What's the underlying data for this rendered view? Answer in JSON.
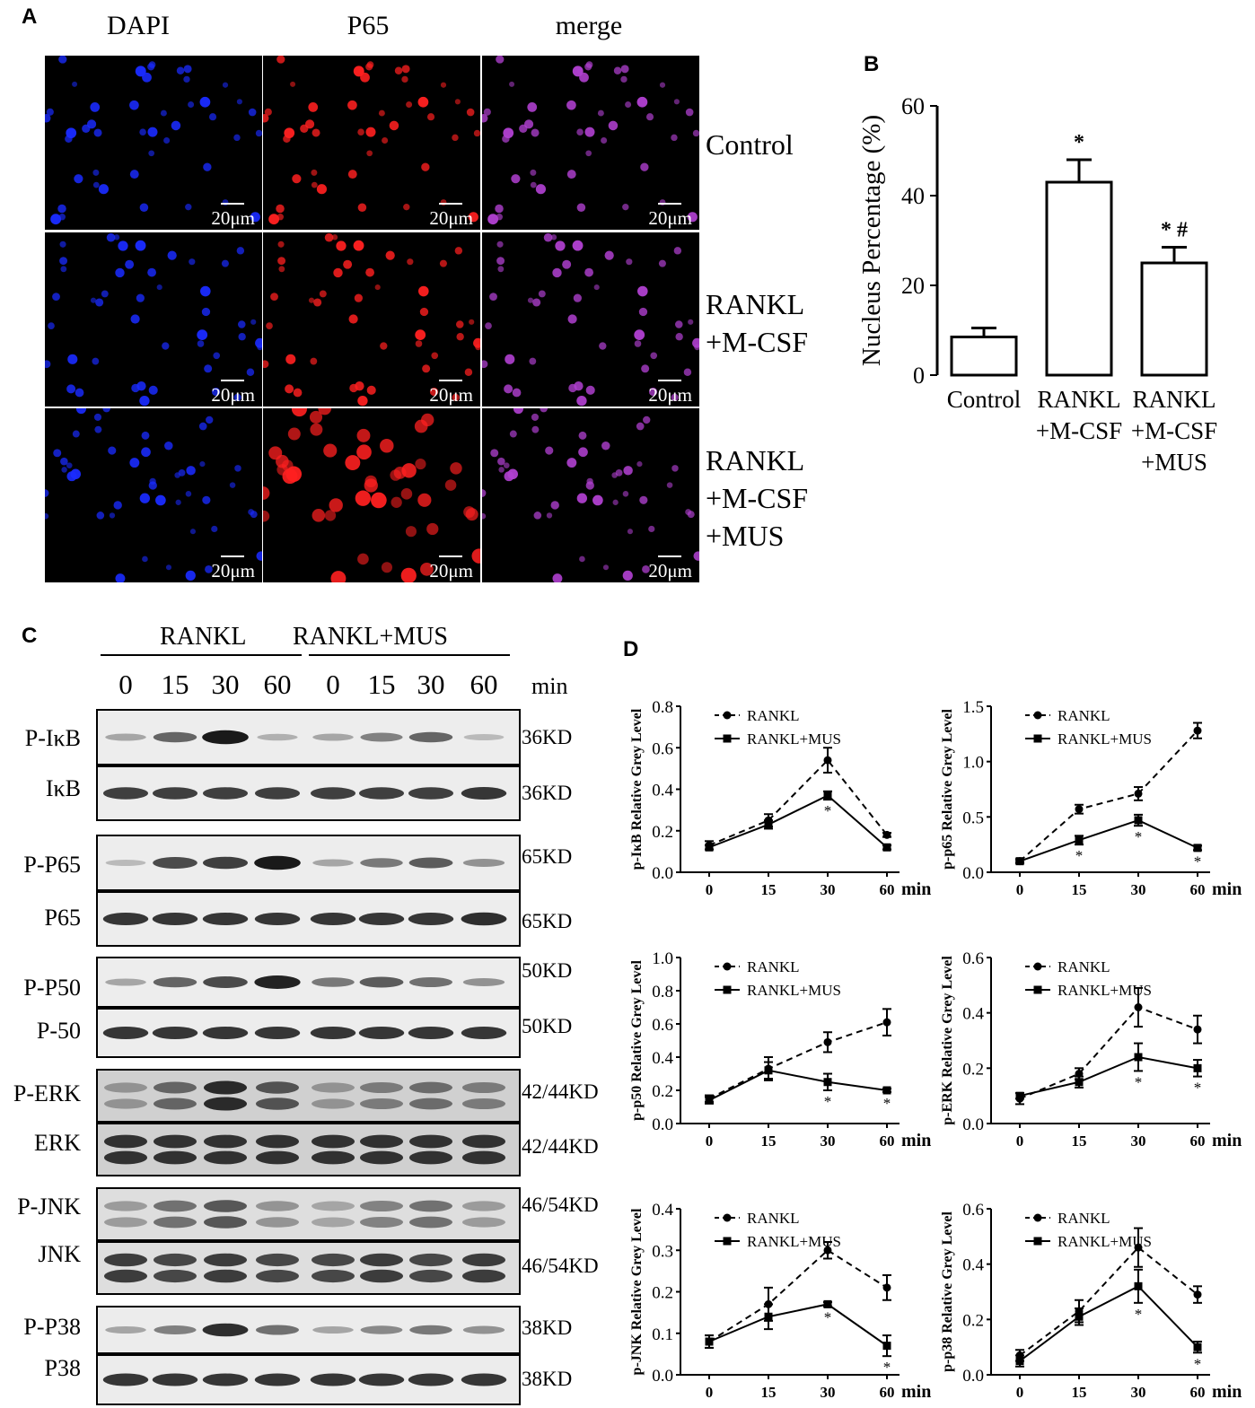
{
  "panelA": {
    "letter": "A",
    "columns": [
      "DAPI",
      "P65",
      "merge"
    ],
    "rows": [
      {
        "label_lines": [
          "Control"
        ]
      },
      {
        "label_lines": [
          "RANKL",
          "+M-CSF"
        ]
      },
      {
        "label_lines": [
          "RANKL",
          "+M-CSF",
          "+MUS"
        ]
      }
    ],
    "scale_label": "20μm",
    "colors": {
      "dapi": "#1a2bff",
      "p65": "#ff2020",
      "merge": "#b040d0"
    }
  },
  "panelB": {
    "letter": "B",
    "chart_data": {
      "type": "bar",
      "ylabel": "Nucleus Percentage (%)",
      "categories": [
        [
          "Control"
        ],
        [
          "RANKL",
          "+M-CSF"
        ],
        [
          "RANKL",
          "+M-CSF",
          "+MUS"
        ]
      ],
      "values": [
        8.5,
        43,
        25
      ],
      "errors": [
        2,
        5,
        3.5
      ],
      "annotations": [
        "",
        "*",
        "* #"
      ],
      "ylim": [
        0,
        60
      ],
      "yticks": [
        0,
        20,
        40,
        60
      ]
    }
  },
  "panelC": {
    "letter": "C",
    "groups": [
      "RANKL",
      "RANKL+MUS"
    ],
    "times": [
      "0",
      "15",
      "30",
      "60",
      "0",
      "15",
      "30",
      "60"
    ],
    "time_unit": "min",
    "blots": [
      {
        "labels": [
          "P-IκB",
          "IκB"
        ],
        "kd": [
          "36KD",
          "36KD"
        ]
      },
      {
        "labels": [
          "P-P65",
          "P65"
        ],
        "kd": [
          "65KD",
          "65KD"
        ]
      },
      {
        "labels": [
          "P-P50",
          "P-50"
        ],
        "kd": [
          "50KD",
          "50KD"
        ]
      },
      {
        "labels": [
          "P-ERK",
          "ERK"
        ],
        "kd": [
          "42/44KD",
          "42/44KD"
        ]
      },
      {
        "labels": [
          "P-JNK",
          "JNK"
        ],
        "kd": [
          "46/54KD",
          "46/54KD"
        ]
      },
      {
        "labels": [
          "P-P38",
          "P38"
        ],
        "kd": [
          "38KD",
          "38KD"
        ]
      }
    ]
  },
  "panelD": {
    "letter": "D",
    "chart_data": [
      {
        "type": "line",
        "ylabel": "p-IκB Relative Grey Level",
        "x": [
          "0",
          "15",
          "30",
          "60"
        ],
        "xunit": "min",
        "ylim": [
          0,
          0.8
        ],
        "yticks": [
          "0.0",
          "0.2",
          "0.4",
          "0.6",
          "0.8"
        ],
        "series": [
          {
            "name": "RANKL",
            "values": [
              0.13,
              0.25,
              0.54,
              0.18
            ],
            "err": [
              0.02,
              0.03,
              0.06,
              0.01
            ]
          },
          {
            "name": "RANKL+MUS",
            "values": [
              0.12,
              0.23,
              0.37,
              0.12
            ],
            "err": [
              0.01,
              0.02,
              0.02,
              0.01
            ]
          }
        ],
        "stars": [
          2
        ]
      },
      {
        "type": "line",
        "ylabel": "p-p65 Relative Grey Level",
        "x": [
          "0",
          "15",
          "30",
          "60"
        ],
        "xunit": "min",
        "ylim": [
          0,
          1.5
        ],
        "yticks": [
          "0.0",
          "0.5",
          "1.0",
          "1.5"
        ],
        "series": [
          {
            "name": "RANKL",
            "values": [
              0.1,
              0.57,
              0.71,
              1.28
            ],
            "err": [
              0.02,
              0.04,
              0.06,
              0.07
            ]
          },
          {
            "name": "RANKL+MUS",
            "values": [
              0.1,
              0.29,
              0.47,
              0.22
            ],
            "err": [
              0.01,
              0.04,
              0.05,
              0.02
            ]
          }
        ],
        "stars": [
          1,
          2,
          3
        ]
      },
      {
        "type": "line",
        "ylabel": "p-p50 Relative Grey Level",
        "x": [
          "0",
          "15",
          "30",
          "60"
        ],
        "xunit": "min",
        "ylim": [
          0,
          1.0
        ],
        "yticks": [
          "0.0",
          "0.2",
          "0.4",
          "0.6",
          "0.8",
          "1.0"
        ],
        "series": [
          {
            "name": "RANKL",
            "values": [
              0.15,
              0.33,
              0.49,
              0.61
            ],
            "err": [
              0.02,
              0.07,
              0.06,
              0.08
            ]
          },
          {
            "name": "RANKL+MUS",
            "values": [
              0.14,
              0.32,
              0.25,
              0.2
            ],
            "err": [
              0.02,
              0.05,
              0.05,
              0.01
            ]
          }
        ],
        "stars": [
          2,
          3
        ]
      },
      {
        "type": "line",
        "ylabel": "p-ERK Relative Grey Level",
        "x": [
          "0",
          "15",
          "30",
          "60"
        ],
        "xunit": "min",
        "ylim": [
          0,
          0.6
        ],
        "yticks": [
          "0.0",
          "0.2",
          "0.4",
          "0.6"
        ],
        "series": [
          {
            "name": "RANKL",
            "values": [
              0.09,
              0.18,
              0.42,
              0.34
            ],
            "err": [
              0.02,
              0.02,
              0.07,
              0.05
            ]
          },
          {
            "name": "RANKL+MUS",
            "values": [
              0.1,
              0.15,
              0.24,
              0.2
            ],
            "err": [
              0.01,
              0.02,
              0.05,
              0.03
            ]
          }
        ],
        "stars": [
          2,
          3
        ]
      },
      {
        "type": "line",
        "ylabel": "p-JNK Relative Grey Level",
        "x": [
          "0",
          "15",
          "30",
          "60"
        ],
        "xunit": "min",
        "ylim": [
          0,
          0.4
        ],
        "yticks": [
          "0.0",
          "0.1",
          "0.2",
          "0.3",
          "0.4"
        ],
        "series": [
          {
            "name": "RANKL",
            "values": [
              0.08,
              0.17,
              0.3,
              0.21
            ],
            "err": [
              0.015,
              0.04,
              0.02,
              0.03
            ]
          },
          {
            "name": "RANKL+MUS",
            "values": [
              0.08,
              0.14,
              0.17,
              0.07
            ],
            "err": [
              0.015,
              0.03,
              0.005,
              0.025
            ]
          }
        ],
        "stars": [
          2,
          3
        ]
      },
      {
        "type": "line",
        "ylabel": "p-p38 Relative Grey Level",
        "x": [
          "0",
          "15",
          "30",
          "60"
        ],
        "xunit": "min",
        "ylim": [
          0,
          0.6
        ],
        "yticks": [
          "0.0",
          "0.2",
          "0.4",
          "0.6"
        ],
        "series": [
          {
            "name": "RANKL",
            "values": [
              0.07,
              0.23,
              0.46,
              0.29
            ],
            "err": [
              0.02,
              0.04,
              0.07,
              0.03
            ]
          },
          {
            "name": "RANKL+MUS",
            "values": [
              0.05,
              0.21,
              0.32,
              0.1
            ],
            "err": [
              0.02,
              0.03,
              0.06,
              0.02
            ]
          }
        ],
        "stars": [
          2,
          3
        ]
      }
    ]
  }
}
